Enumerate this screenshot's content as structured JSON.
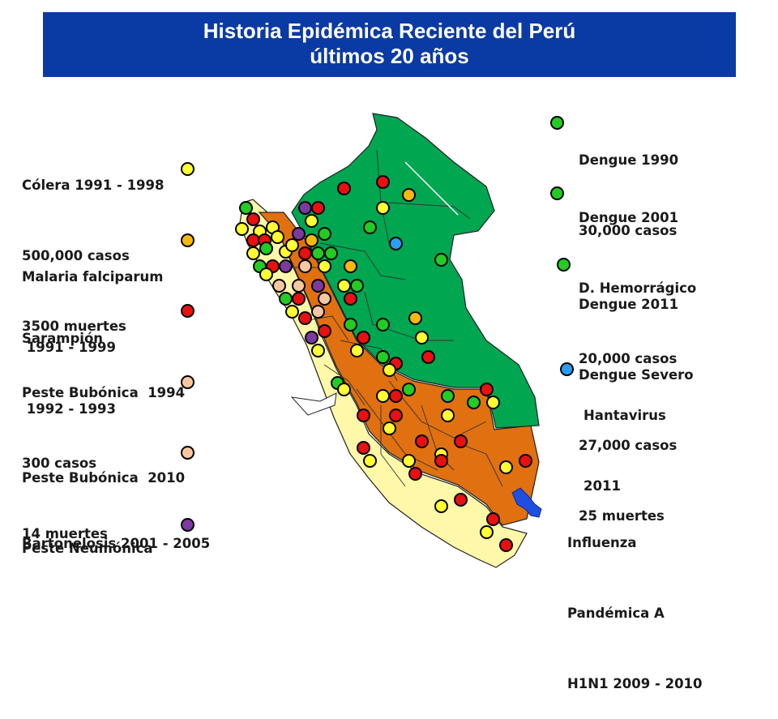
{
  "title": {
    "line1": "Historia Epidémica Reciente del Perú",
    "line2": "últimos 20 años"
  },
  "colors": {
    "title_bg": "#0a3aa3",
    "cholera": "#ffff33",
    "malaria": "#f5b80f",
    "measles": "#e81010",
    "plague_1994": "#f5c8a0",
    "plague_2010": "#f5c8a0",
    "bartonella": "#7a3aa0",
    "dengue": "#22cc22",
    "hantavirus": "#2a9df4",
    "lake": "#1f4fe0",
    "region_north": "#00a650",
    "region_mid": "#e07010",
    "region_south": "#fff8a8"
  },
  "legend_left": [
    {
      "id": "cholera",
      "lines": [
        "Cólera 1991 - 1998",
        "500,000 casos",
        "3500 muertes"
      ]
    },
    {
      "id": "malaria",
      "lines": [
        "Malaria falciparum",
        " 1991 - 1999"
      ]
    },
    {
      "id": "measles",
      "lines": [
        "Sarampión",
        " 1992 - 1993"
      ]
    },
    {
      "id": "plague_1994",
      "lines": [
        "Peste Bubónica  1994",
        "300 casos",
        "14 muertes"
      ]
    },
    {
      "id": "plague_2010",
      "lines": [
        "Peste Bubónica  2010",
        "Peste Neumónica"
      ]
    },
    {
      "id": "bartonella",
      "lines": [
        "Bartonelosis 2001 - 2005"
      ]
    }
  ],
  "legend_right": [
    {
      "id": "dengue_1990",
      "lines": [
        "Dengue 1990",
        "30,000 casos"
      ]
    },
    {
      "id": "dengue_2001",
      "lines": [
        "Dengue 2001",
        "D. Hemorrágico",
        "20,000 casos"
      ]
    },
    {
      "id": "dengue_2011",
      "lines": [
        "Dengue 2011",
        "Dengue Severo",
        "27,000 casos",
        "25 muertes"
      ]
    },
    {
      "id": "hantavirus",
      "lines": [
        "Hantavirus",
        "2011"
      ]
    },
    {
      "id": "influenza",
      "lines": [
        "Influenza",
        "Pandémica A",
        "H1N1 2009 - 2010"
      ]
    }
  ]
}
